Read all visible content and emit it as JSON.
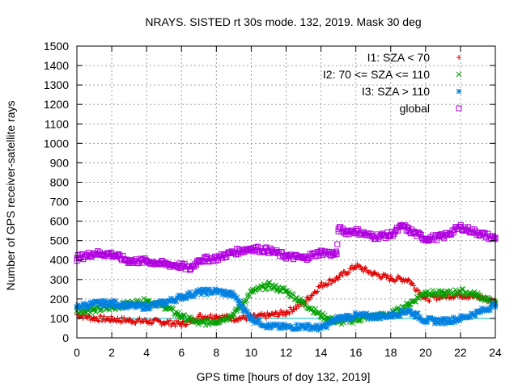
{
  "chart_data": {
    "type": "scatter",
    "title": "NRAYS. SISTED rt 30s mode. 132, 2019. Mask 30 deg",
    "xlabel": "GPS time [hours of doy 132, 2019]",
    "ylabel": "Number of GPS receiver-satellite rays",
    "xlim": [
      0,
      24
    ],
    "ylim": [
      0,
      1500
    ],
    "xticks": [
      0,
      2,
      4,
      6,
      8,
      10,
      12,
      14,
      16,
      18,
      20,
      22,
      24
    ],
    "yticks": [
      0,
      100,
      200,
      300,
      400,
      500,
      600,
      700,
      800,
      900,
      1000,
      1100,
      1200,
      1300,
      1400,
      1500
    ],
    "grid": true,
    "legend_position": "top-right",
    "reference_line": {
      "y": 100,
      "color": "#00c8c8"
    },
    "series": [
      {
        "name": "I1: SZA < 70",
        "marker": "+",
        "color": "#e00000",
        "x": [
          0,
          1,
          2,
          3,
          4,
          5,
          6,
          6.5,
          7,
          8,
          9,
          10,
          11,
          12,
          13,
          14,
          15,
          16,
          17,
          18,
          19,
          20,
          21,
          22,
          23,
          24
        ],
        "y": [
          120,
          100,
          95,
          90,
          85,
          80,
          70,
          85,
          110,
          110,
          100,
          105,
          115,
          130,
          180,
          270,
          310,
          370,
          330,
          305,
          300,
          200,
          215,
          220,
          210,
          185
        ]
      },
      {
        "name": "I2: 70 <= SZA <= 110",
        "marker": "x",
        "color": "#00a000",
        "x": [
          0,
          1,
          2,
          3,
          4,
          5,
          6,
          7,
          8,
          9,
          10,
          11,
          12,
          13,
          14,
          15,
          16,
          17,
          18,
          19,
          20,
          21,
          22,
          23,
          24
        ],
        "y": [
          140,
          145,
          155,
          175,
          190,
          165,
          110,
          75,
          85,
          120,
          235,
          270,
          240,
          180,
          115,
          80,
          95,
          110,
          120,
          170,
          235,
          225,
          240,
          220,
          175
        ]
      },
      {
        "name": "I3: SZA > 110",
        "marker": "*",
        "color": "#0080e0",
        "x": [
          0,
          1,
          2,
          3,
          4,
          5,
          6,
          7,
          8,
          9,
          10,
          11,
          12,
          13,
          14,
          15,
          16,
          17,
          18,
          19,
          20,
          21,
          22,
          23,
          24
        ],
        "y": [
          160,
          175,
          180,
          165,
          160,
          180,
          210,
          235,
          240,
          220,
          100,
          60,
          55,
          60,
          50,
          100,
          115,
          110,
          115,
          140,
          90,
          85,
          100,
          130,
          170
        ]
      },
      {
        "name": "global",
        "marker": "square",
        "color": "#b000e0",
        "x": [
          0,
          1,
          2,
          3,
          4,
          5,
          6,
          6.5,
          7,
          8,
          9,
          10,
          11,
          12,
          13,
          14,
          14.9,
          15,
          15.5,
          16,
          17,
          18,
          18.7,
          19,
          20,
          21,
          22,
          23,
          24
        ],
        "y": [
          410,
          435,
          430,
          395,
          395,
          380,
          370,
          355,
          400,
          410,
          440,
          460,
          450,
          420,
          410,
          440,
          430,
          560,
          545,
          550,
          520,
          530,
          575,
          555,
          510,
          520,
          570,
          540,
          510
        ]
      }
    ]
  }
}
